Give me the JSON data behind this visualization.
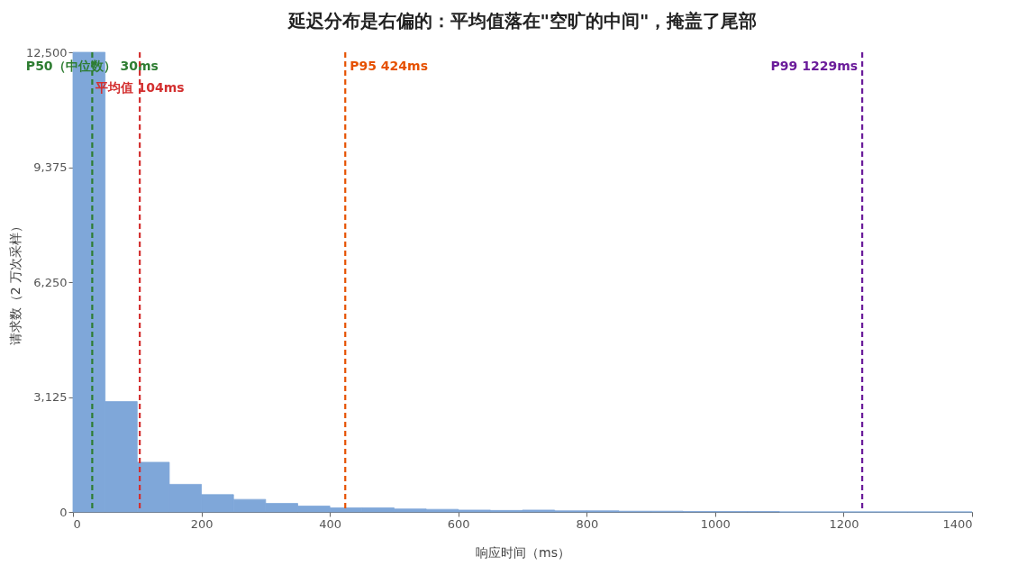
{
  "chart_data": {
    "type": "histogram",
    "title": "延迟分布是右偏的：平均值落在\"空旷的中间\"，掩盖了尾部",
    "xlabel": "响应时间（ms）",
    "ylabel": "请求数（2 万次采样）",
    "bins": [
      0,
      50,
      100,
      150,
      200,
      250,
      300,
      350,
      400,
      450,
      500,
      550,
      600,
      650,
      700,
      750,
      800,
      850,
      900,
      950,
      1000,
      1050,
      1100,
      1150,
      1200,
      1250,
      1300,
      1350,
      1400
    ],
    "values": [
      12500,
      3000,
      1350,
      750,
      470,
      340,
      230,
      160,
      110,
      110,
      80,
      70,
      50,
      40,
      50,
      30,
      30,
      20,
      20,
      10,
      10,
      10,
      0,
      0,
      0,
      0,
      0,
      0
    ],
    "color": "#7fa7d9",
    "xlim": [
      0,
      1400
    ],
    "xticks": [
      0,
      200,
      400,
      600,
      800,
      {
        "value": 1000,
        "label": "1000"
      },
      {
        "value": 1200,
        "label": "1200"
      },
      {
        "value": 1400,
        "label": "1400"
      }
    ],
    "ylim": [
      0,
      12500
    ],
    "yticks": [
      0,
      {
        "value": 3125,
        "label": "3,125"
      },
      {
        "value": 6250,
        "label": "6,250"
      },
      {
        "value": 9375,
        "label": "9,375"
      },
      {
        "value": 12500,
        "label": "12,500"
      }
    ],
    "grid": false,
    "ref_lines": [
      {
        "axis": "x",
        "value": 30,
        "label": "P50（中位数） 30ms",
        "color": "#2e7d32",
        "line_style": "dashed"
      },
      {
        "axis": "x",
        "value": 104,
        "label": "平均值 104ms",
        "color": "#d32f2f",
        "line_style": "dashed"
      },
      {
        "axis": "x",
        "value": 424,
        "label": "P95 424ms",
        "color": "#e65100",
        "line_style": "dashed"
      },
      {
        "axis": "x",
        "value": 1229,
        "label": "P99 1229ms",
        "color": "#6a1b9a",
        "line_style": "dashed"
      }
    ]
  }
}
